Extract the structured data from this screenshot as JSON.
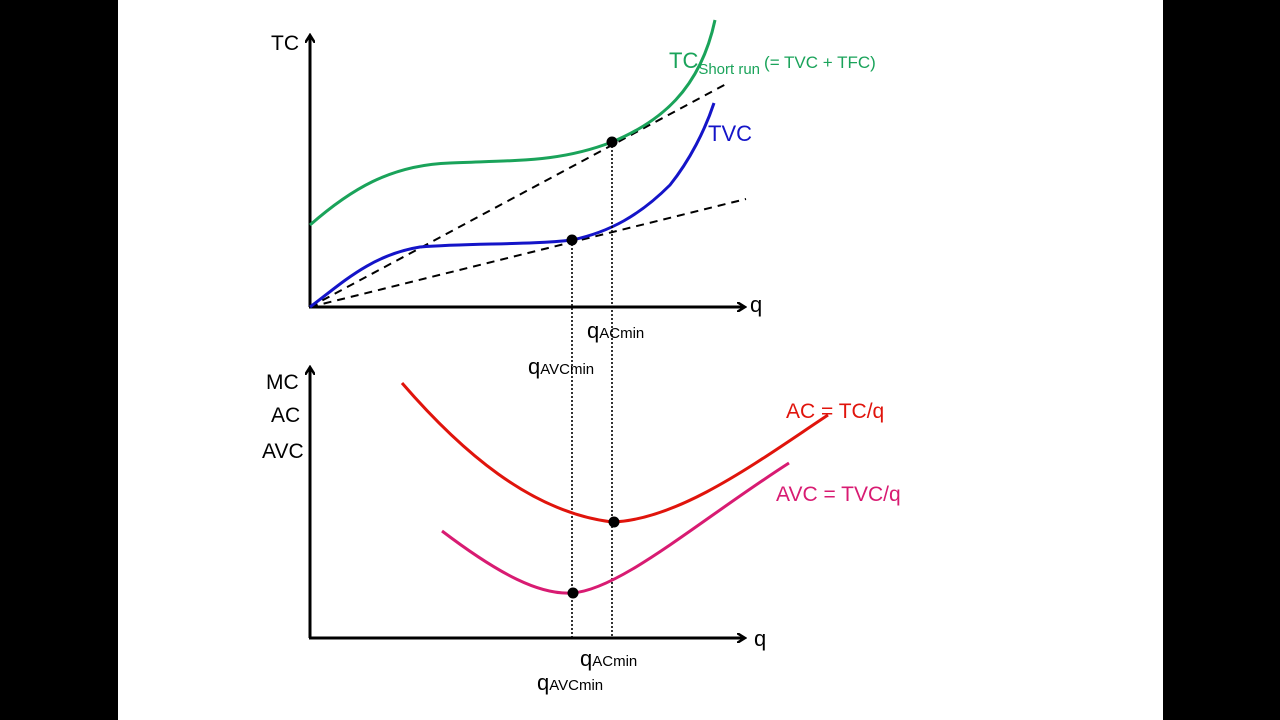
{
  "colors": {
    "tc": "#1aa35a",
    "tvc": "#1414c8",
    "ac": "#e0140c",
    "avc": "#d81b72",
    "axis": "#000000"
  },
  "top_panel": {
    "y_axis_label": "TC",
    "x_axis_label": "q",
    "tc_label": "TC",
    "tc_subscript": "Short run",
    "tc_note": "(= TVC + TFC)",
    "tvc_label": "TVC",
    "q_ac_min": {
      "base": "q",
      "sub": "ACmin"
    },
    "q_avc_min": {
      "base": "q",
      "sub": "AVCmin"
    }
  },
  "bottom_panel": {
    "y_axis_labels": [
      "MC",
      "AC",
      "AVC"
    ],
    "x_axis_label": "q",
    "ac_label": "AC = TC/q",
    "avc_label": "AVC = TVC/q",
    "q_ac_min": {
      "base": "q",
      "sub": "ACmin"
    },
    "q_avc_min": {
      "base": "q",
      "sub": "AVCmin"
    }
  }
}
